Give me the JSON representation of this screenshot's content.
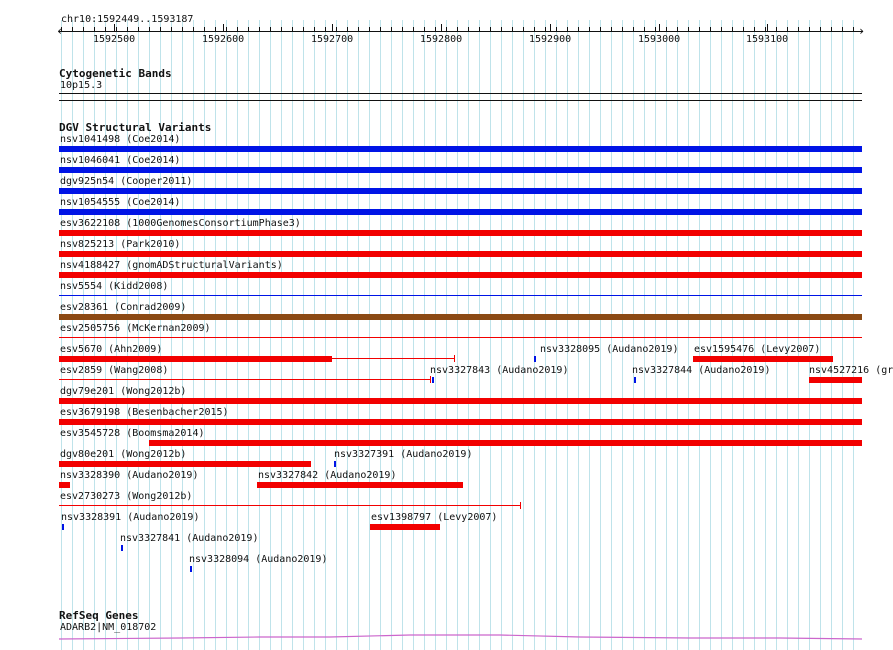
{
  "view": {
    "locus": "chr10:1592449..1593187",
    "start": 1592449,
    "end": 1593187,
    "ticks": [
      "1592500",
      "1592600",
      "1592700",
      "1592800",
      "1592900",
      "1593000",
      "1593100"
    ]
  },
  "colors": {
    "blue": "#0014e6",
    "red": "#f20000",
    "brown": "#8b4a14",
    "grid": "#bfe3ea",
    "gene": "#cc66cc",
    "divider": "#111111"
  },
  "cytoband": {
    "title": "Cytogenetic Bands",
    "band_label": "10p15.3"
  },
  "dgv": {
    "title": "DGV Structural Variants",
    "features": [
      {
        "label": "nsv1041498 (Coe2014)",
        "color": "blue",
        "kind": "bar",
        "start": 1592449,
        "end": 1593187
      },
      {
        "label": "nsv1046041 (Coe2014)",
        "color": "blue",
        "kind": "bar",
        "start": 1592449,
        "end": 1593187
      },
      {
        "label": "dgv925n54 (Cooper2011)",
        "color": "blue",
        "kind": "bar",
        "start": 1592449,
        "end": 1593187
      },
      {
        "label": "nsv1054555 (Coe2014)",
        "color": "blue",
        "kind": "bar",
        "start": 1592449,
        "end": 1593187
      },
      {
        "label": "esv3622108 (1000GenomesConsortiumPhase3)",
        "color": "red",
        "kind": "bar",
        "start": 1592449,
        "end": 1593187
      },
      {
        "label": "nsv825213 (Park2010)",
        "color": "red",
        "kind": "bar",
        "start": 1592449,
        "end": 1593187
      },
      {
        "label": "nsv4188427 (gnomADStructuralVariants)",
        "color": "red",
        "kind": "bar",
        "start": 1592449,
        "end": 1593187
      },
      {
        "label": "nsv5554 (Kidd2008)",
        "color": "blue",
        "kind": "line",
        "start": 1592449,
        "end": 1593187
      },
      {
        "label": "esv28361 (Conrad2009)",
        "color": "brown",
        "kind": "bar",
        "start": 1592449,
        "end": 1593187
      },
      {
        "label": "esv2505756 (McKernan2009)",
        "color": "red",
        "kind": "line",
        "start": 1592449,
        "end": 1593187
      },
      {
        "label": "esv5670 (Ahn2009)",
        "color": "red",
        "kind": "barline",
        "start": 1592449,
        "end": 1592700,
        "line_end": 1592812
      },
      {
        "label": "nsv3328095 (Audano2019)",
        "color": "blue",
        "kind": "tick",
        "start": 1592886,
        "end": 1592888
      },
      {
        "label": "esv1595476 (Levy2007)",
        "color": "red",
        "kind": "bar",
        "start": 1593032,
        "end": 1593160
      },
      {
        "label": "esv2859 (Wang2008)",
        "color": "red",
        "kind": "line",
        "start": 1592449,
        "end": 1592790
      },
      {
        "label": "nsv3327843 (Audano2019)",
        "color": "blue",
        "kind": "tick",
        "start": 1592792,
        "end": 1592794
      },
      {
        "label": "nsv3327844 (Audano2019)",
        "color": "blue",
        "kind": "tick",
        "start": 1592977,
        "end": 1592979
      },
      {
        "label": "nsv4527216 (gr",
        "color": "red",
        "kind": "bar",
        "start": 1593138,
        "end": 1593187
      },
      {
        "label": "dgv79e201 (Wong2012b)",
        "color": "red",
        "kind": "bar",
        "start": 1592449,
        "end": 1593187
      },
      {
        "label": "esv3679198 (Besenbacher2015)",
        "color": "red",
        "kind": "bar",
        "start": 1592449,
        "end": 1593187
      },
      {
        "label": "esv3545728 (Boomsma2014)",
        "color": "red",
        "kind": "bar",
        "start": 1592532,
        "end": 1593187
      },
      {
        "label": "dgv80e201 (Wong2012b)",
        "color": "red",
        "kind": "bar",
        "start": 1592449,
        "end": 1592681
      },
      {
        "label": "nsv3327391 (Audano2019)",
        "color": "blue",
        "kind": "tick",
        "start": 1592702,
        "end": 1592704
      },
      {
        "label": "nsv3328390 (Audano2019)",
        "color": "red",
        "kind": "bar",
        "start": 1592449,
        "end": 1592459
      },
      {
        "label": "nsv3327842 (Audano2019)",
        "color": "red",
        "kind": "bar",
        "start": 1592631,
        "end": 1592820
      },
      {
        "label": "esv2730273 (Wong2012b)",
        "color": "red",
        "kind": "line",
        "start": 1592449,
        "end": 1592873
      },
      {
        "label": "nsv3328391 (Audano2019)",
        "color": "blue",
        "kind": "tick",
        "start": 1592452,
        "end": 1592454
      },
      {
        "label": "esv1398797 (Levy2007)",
        "color": "red",
        "kind": "bar",
        "start": 1592735,
        "end": 1592799
      },
      {
        "label": "nsv3327841 (Audano2019)",
        "color": "blue",
        "kind": "tick",
        "start": 1592506,
        "end": 1592508
      },
      {
        "label": "nsv3328094 (Audano2019)",
        "color": "blue",
        "kind": "tick",
        "start": 1592569,
        "end": 1592571
      }
    ]
  },
  "refseq": {
    "title": "RefSeq Genes",
    "gene_label": "ADARB2|NM_018702"
  }
}
